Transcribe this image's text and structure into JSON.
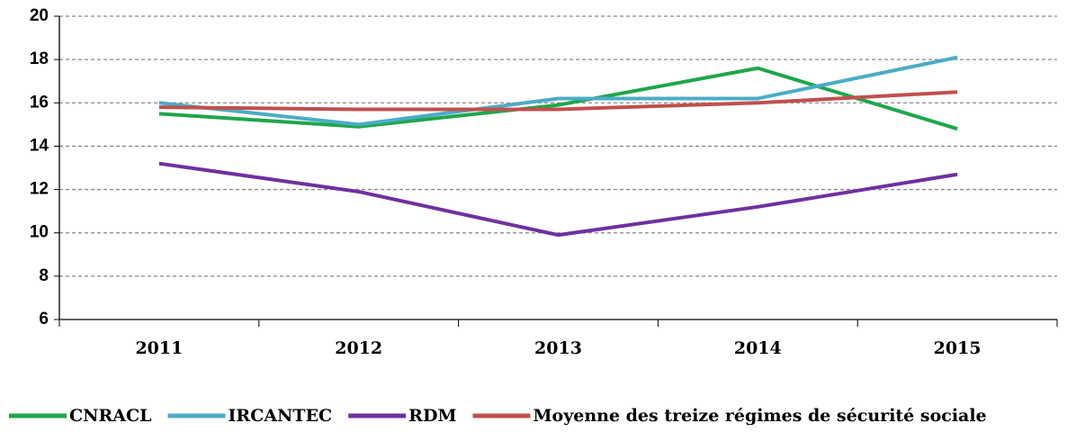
{
  "chart_data": {
    "type": "line",
    "categories": [
      "2011",
      "2012",
      "2013",
      "2014",
      "2015"
    ],
    "series": [
      {
        "name": "CNRACL",
        "color": "#1fa64a",
        "values": [
          15.5,
          14.9,
          15.9,
          17.6,
          14.8
        ]
      },
      {
        "name": "IRCANTEC",
        "color": "#4bacc6",
        "values": [
          16.0,
          15.0,
          16.2,
          16.2,
          18.1
        ]
      },
      {
        "name": "RDM",
        "color": "#7030a0",
        "values": [
          13.2,
          11.9,
          9.9,
          11.2,
          12.7
        ]
      },
      {
        "name": "Moyenne des treize régimes de sécurité sociale",
        "color": "#c0504d",
        "values": [
          15.8,
          15.7,
          15.7,
          16.0,
          16.5
        ]
      }
    ],
    "ylim": [
      6,
      20
    ],
    "yticks": [
      6,
      8,
      10,
      12,
      14,
      16,
      18,
      20
    ],
    "grid": true,
    "legend": "bottom"
  }
}
